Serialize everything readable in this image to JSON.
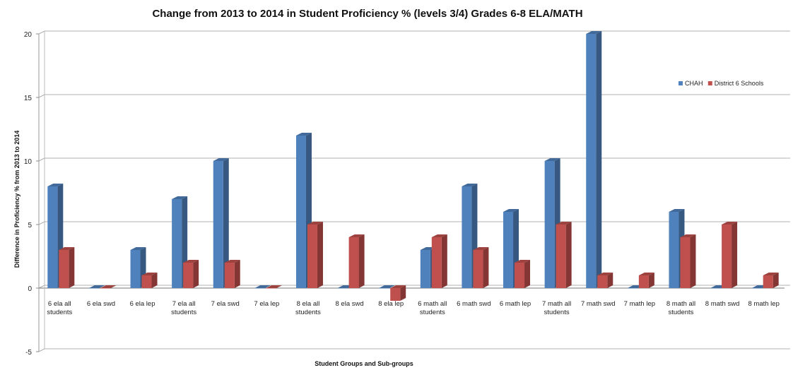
{
  "chart_data": {
    "type": "bar",
    "title": "Change from 2013 to 2014 in Student Proficiency % (levels 3/4) Grades 6-8 ELA/MATH",
    "xlabel": "Student Groups and Sub-groups",
    "ylabel": "Difference in Proficiency % from 2013 to 2014",
    "ylim": [
      -5,
      20
    ],
    "yticks": [
      -5,
      0,
      5,
      10,
      15,
      20
    ],
    "grid": true,
    "legend_position": "right",
    "categories": [
      [
        "6 ela all",
        "students"
      ],
      [
        "6 ela swd"
      ],
      [
        "6 ela lep"
      ],
      [
        "7 ela all",
        "students"
      ],
      [
        "7 ela swd"
      ],
      [
        "7 ela lep"
      ],
      [
        "8 ela all",
        "students"
      ],
      [
        "8  ela swd"
      ],
      [
        "8 ela lep"
      ],
      [
        "6 math all",
        "students"
      ],
      [
        "6 math  swd"
      ],
      [
        "6 math lep"
      ],
      [
        "7 math all",
        "students"
      ],
      [
        "7 math swd"
      ],
      [
        "7 math lep"
      ],
      [
        "8 math all",
        "students"
      ],
      [
        "8  math swd"
      ],
      [
        "8 math lep"
      ]
    ],
    "series": [
      {
        "name": "CHAH",
        "color": "#4f81bd",
        "values": [
          8,
          0,
          3,
          7,
          10,
          0,
          12,
          0,
          0,
          3,
          8,
          6,
          10,
          20,
          0,
          6,
          0,
          0
        ]
      },
      {
        "name": "District 6 Schools",
        "color": "#c0504d",
        "values": [
          3,
          0,
          1,
          2,
          2,
          0,
          5,
          4,
          -1,
          4,
          3,
          2,
          5,
          1,
          1,
          4,
          5,
          1
        ]
      }
    ]
  }
}
